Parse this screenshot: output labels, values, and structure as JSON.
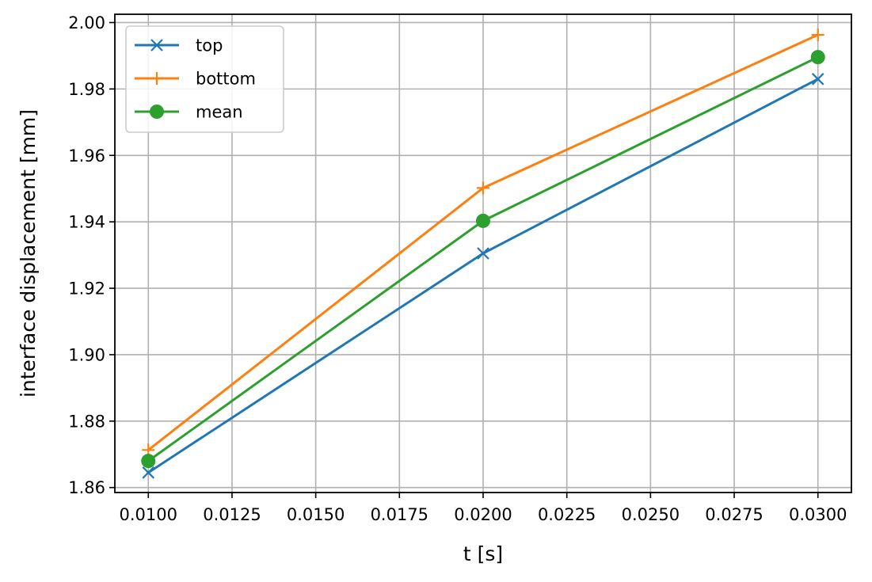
{
  "chart_data": {
    "type": "line",
    "title": "",
    "xlabel": "t [s]",
    "ylabel": "interface displacement [mm]",
    "xlim": [
      0.009,
      0.031
    ],
    "ylim": [
      1.8585,
      2.0025
    ],
    "xticks": [
      "0.0100",
      "0.0125",
      "0.0150",
      "0.0175",
      "0.0200",
      "0.0225",
      "0.0250",
      "0.0275",
      "0.0300"
    ],
    "xtick_values": [
      0.01,
      0.0125,
      0.015,
      0.0175,
      0.02,
      0.0225,
      0.025,
      0.0275,
      0.03
    ],
    "yticks": [
      "1.86",
      "1.88",
      "1.90",
      "1.92",
      "1.94",
      "1.96",
      "1.98",
      "2.00"
    ],
    "ytick_values": [
      1.86,
      1.88,
      1.9,
      1.92,
      1.94,
      1.96,
      1.98,
      2.0
    ],
    "grid": true,
    "legend_position": "top-left",
    "x": [
      0.01,
      0.02,
      0.03
    ],
    "series": [
      {
        "name": "top",
        "values": [
          1.8645,
          1.9305,
          1.983
        ],
        "color": "#1f77b4",
        "marker": "x"
      },
      {
        "name": "bottom",
        "values": [
          1.8713,
          1.9502,
          1.9963
        ],
        "color": "#ff7f0e",
        "marker": "plus"
      },
      {
        "name": "mean",
        "values": [
          1.868,
          1.9403,
          1.9896
        ],
        "color": "#2ca02c",
        "marker": "circle"
      }
    ]
  }
}
